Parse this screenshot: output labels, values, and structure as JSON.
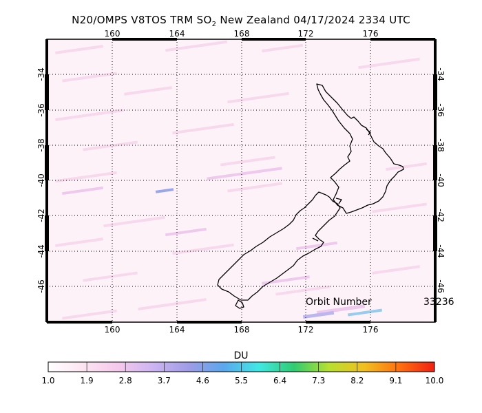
{
  "title": {
    "prefix": "N20/OMPS V8TOS TRM SO",
    "subscript": "2",
    "suffix": " New Zealand 04/17/2024 2334 UTC"
  },
  "map": {
    "lon_ticks": [
      "160",
      "164",
      "168",
      "172",
      "176"
    ],
    "lat_ticks": [
      "-34",
      "-36",
      "-38",
      "-40",
      "-42",
      "-44",
      "-46"
    ],
    "orbit_label": "Orbit Number",
    "orbit_value": "33236"
  },
  "colorbar": {
    "unit": "DU",
    "labels": [
      "1.0",
      "1.9",
      "2.8",
      "3.7",
      "4.6",
      "5.5",
      "6.4",
      "7.3",
      "8.2",
      "9.1",
      "10.0"
    ],
    "colors": [
      "#ffffff",
      "#fde4f1",
      "#f5c8ec",
      "#ccb4f2",
      "#9f9ce6",
      "#5aa8ee",
      "#40e8e4",
      "#30cc70",
      "#b8e030",
      "#f0c020",
      "#ff7010",
      "#f02010"
    ]
  }
}
